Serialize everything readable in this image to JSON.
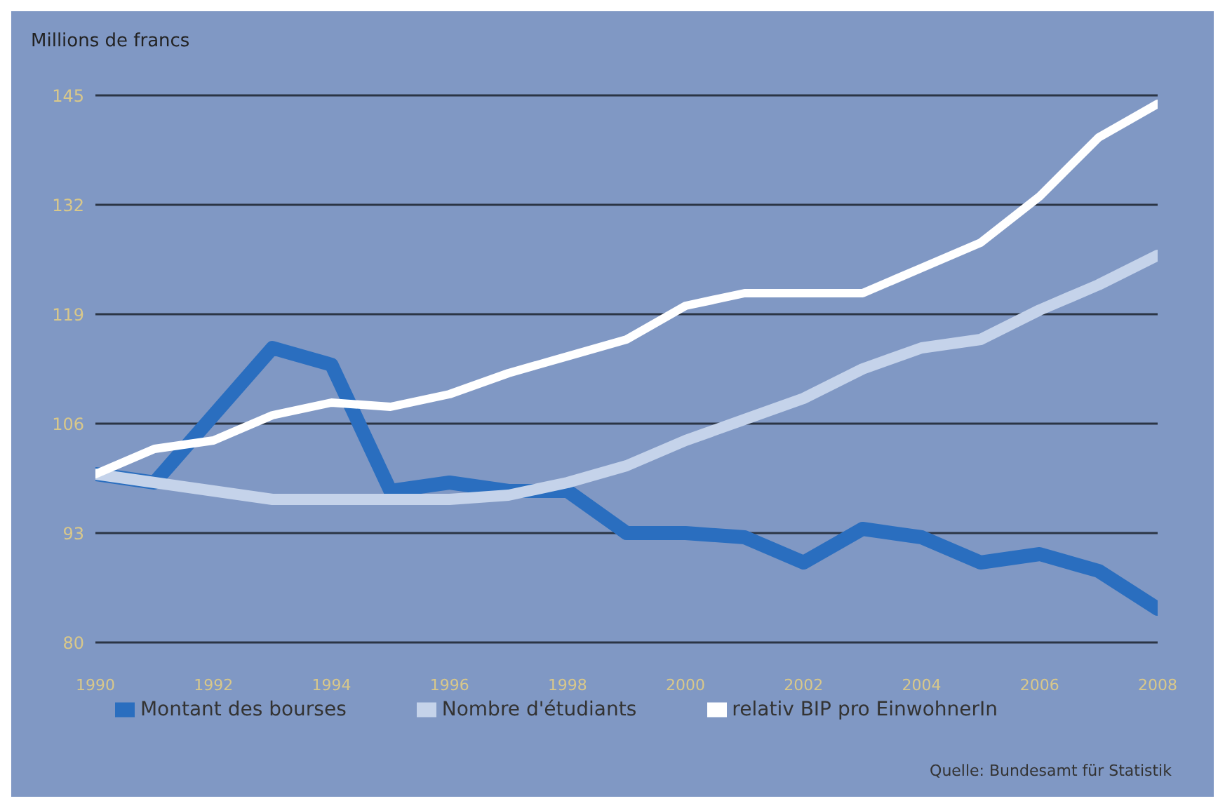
{
  "chart_data": {
    "type": "line",
    "ylabel": "Millions de francs",
    "x": [
      1990,
      1991,
      1992,
      1993,
      1994,
      1995,
      1996,
      1997,
      1998,
      1999,
      2000,
      2001,
      2002,
      2003,
      2004,
      2005,
      2006,
      2007,
      2008
    ],
    "series": [
      {
        "name": "Montant des bourses",
        "color": "#2a6ebf",
        "values": [
          100,
          99,
          107,
          115,
          113,
          98,
          99,
          98,
          98,
          93,
          93,
          92.5,
          89.5,
          93.5,
          92.5,
          89.5,
          90.5,
          88.5,
          84
        ]
      },
      {
        "name": "Nombre d'étudiants",
        "color": "#c5d3ea",
        "values": [
          100,
          99,
          98,
          97,
          97,
          97,
          97,
          97.5,
          99,
          101,
          104,
          106.5,
          109,
          112.5,
          115,
          116,
          119.5,
          122.5,
          126
        ]
      },
      {
        "name": "relativ BIP pro EinwohnerIn",
        "color": "#ffffff",
        "values": [
          100,
          103,
          104,
          107,
          108.5,
          108,
          109.5,
          112,
          114,
          116,
          120,
          121.5,
          121.5,
          121.5,
          124.5,
          127.5,
          133,
          140,
          144
        ]
      }
    ],
    "xlim": [
      1990,
      2008
    ],
    "xticks": [
      1990,
      1992,
      1994,
      1996,
      1998,
      2000,
      2002,
      2004,
      2006,
      2008
    ],
    "ylim": [
      80,
      145
    ],
    "yticks": [
      80,
      93,
      106,
      119,
      132,
      145
    ],
    "grid": "y",
    "legend": "bottom",
    "marker": "none",
    "line_style": "solid",
    "annotations": [
      "Quelle: Bundesamt für Statistik"
    ]
  }
}
